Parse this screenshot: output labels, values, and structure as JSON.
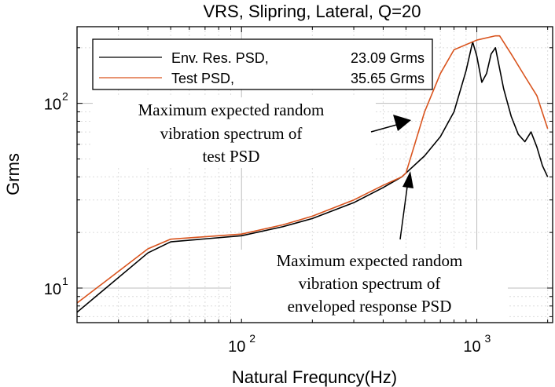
{
  "chart_data": {
    "type": "line",
    "title": "VRS, Slipring, Lateral, Q=20",
    "xlabel": "Natural Frequncy(Hz)",
    "ylabel": "Grms",
    "xscale": "log",
    "yscale": "log",
    "xlim": [
      20,
      2100
    ],
    "ylim": [
      6.5,
      260
    ],
    "grid": true,
    "legend_position": "top-left",
    "x_ticks": [
      {
        "value": 100,
        "base": "10",
        "exp": "2"
      },
      {
        "value": 1000,
        "base": "10",
        "exp": "3"
      }
    ],
    "y_ticks": [
      {
        "value": 10,
        "base": "10",
        "exp": "1"
      },
      {
        "value": 100,
        "base": "10",
        "exp": "2"
      }
    ],
    "series": [
      {
        "name": "Env. Res. PSD,",
        "value_label": "23.09 Grms",
        "color": "#000000",
        "x": [
          20,
          40,
          50,
          100,
          150,
          200,
          300,
          400,
          480,
          600,
          700,
          800,
          900,
          960,
          1000,
          1050,
          1100,
          1150,
          1200,
          1300,
          1400,
          1500,
          1600,
          1700,
          1800,
          1900,
          2000
        ],
        "y": [
          7.4,
          15.5,
          17.8,
          19.2,
          21.5,
          23.8,
          29,
          35,
          40,
          52,
          66,
          90,
          150,
          215,
          180,
          130,
          145,
          185,
          200,
          120,
          85,
          68,
          62,
          70,
          58,
          46,
          40
        ]
      },
      {
        "name": "Test PSD,",
        "value_label": "35.65 Grms",
        "color": "#d9541e",
        "x": [
          20,
          40,
          50,
          100,
          150,
          200,
          300,
          400,
          480,
          500,
          600,
          700,
          800,
          1000,
          1200,
          1250,
          1400,
          1600,
          1800,
          2000
        ],
        "y": [
          8.3,
          16.3,
          18.4,
          19.6,
          22,
          24.5,
          30,
          36,
          40,
          42,
          90,
          145,
          195,
          220,
          232,
          232,
          185,
          140,
          110,
          73
        ]
      }
    ],
    "annotations": [
      {
        "lines": [
          "Maximum expected random",
          "vibration spectrum of",
          "test PSD"
        ],
        "arrow_to": {
          "x": 510,
          "y": 88
        }
      },
      {
        "lines": [
          "Maximum expected random",
          "vibration spectrum of",
          "enveloped response PSD"
        ],
        "arrow_to": {
          "x": 500,
          "y": 40
        }
      }
    ]
  }
}
